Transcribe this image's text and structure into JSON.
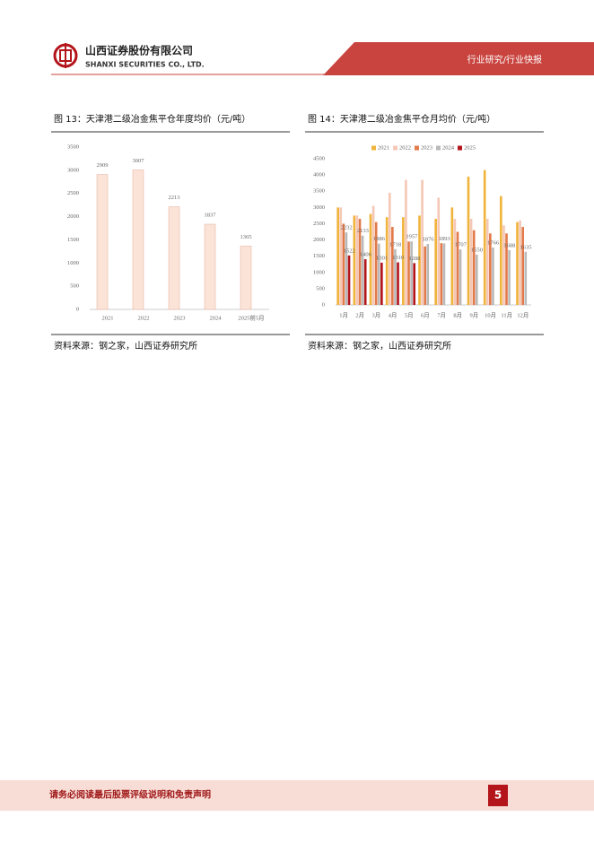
{
  "header": {
    "company": "山西证券股份有限公司",
    "company_en": "SHANXI SECURITIES CO., LTD.",
    "section": "行业研究/行业快报"
  },
  "chart_data": [
    {
      "type": "bar",
      "title": "图 13：天津港二级冶金焦平仓年度均价（元/吨）",
      "categories": [
        "2021",
        "2022",
        "2023",
        "2024",
        "2025前5月"
      ],
      "values": [
        2909,
        3007,
        2213,
        1837,
        1365
      ],
      "color": "#fbe3d8",
      "ylim": [
        0,
        3500
      ],
      "yticks": [
        0,
        500,
        1000,
        1500,
        2000,
        2500,
        3000,
        3500
      ],
      "grid": false,
      "data_labels": true,
      "source": "资料来源：钢之家，山西证券研究所"
    },
    {
      "type": "bar",
      "title": "图 14：天津港二级冶金焦平仓月均价（元/吨）",
      "categories": [
        "1月",
        "2月",
        "3月",
        "4月",
        "5月",
        "6月",
        "7月",
        "8月",
        "9月",
        "10月",
        "11月",
        "12月"
      ],
      "series": [
        {
          "name": "2021",
          "color": "#f0b43c",
          "values": [
            3000,
            2750,
            2800,
            2700,
            2700,
            2750,
            2650,
            3000,
            3950,
            4150,
            3350,
            2550
          ],
          "data_labels": false
        },
        {
          "name": "2022",
          "color": "#f5c7b6",
          "values": [
            3000,
            2750,
            3050,
            3450,
            3850,
            3850,
            3300,
            2650,
            2650,
            2650,
            2450,
            2600
          ],
          "data_labels": false
        },
        {
          "name": "2023",
          "color": "#e27a4a",
          "values": [
            2500,
            2650,
            2550,
            2400,
            1950,
            1800,
            1900,
            2250,
            2300,
            2200,
            2200,
            2400
          ],
          "data_labels": false
        },
        {
          "name": "2024",
          "color": "#b9b9b9",
          "values": [
            2232,
            2133,
            1886,
            1718,
            1957,
            1876,
            1893,
            1707,
            1550,
            1766,
            1688,
            1635
          ],
          "data_labels": true
        },
        {
          "name": "2025",
          "color": "#b3151b",
          "values": [
            1522,
            1406,
            1301,
            1310,
            1288,
            null,
            null,
            null,
            null,
            null,
            null,
            null
          ],
          "data_labels": true
        }
      ],
      "ylim": [
        0,
        4500
      ],
      "yticks": [
        0,
        500,
        1000,
        1500,
        2000,
        2500,
        3000,
        3500,
        4000,
        4500
      ],
      "grid": false,
      "legend": "top",
      "source": "资料来源：钢之家，山西证券研究所"
    }
  ],
  "footer": {
    "disclaimer": "请务必阅读最后股票评级说明和免责声明",
    "page": "5"
  }
}
